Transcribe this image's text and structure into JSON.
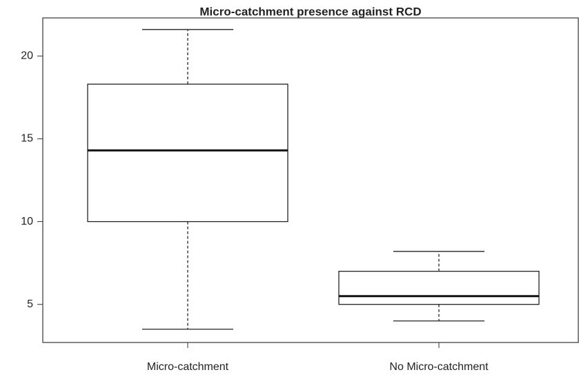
{
  "chart_data": {
    "type": "box",
    "title": "Micro-catchment presence against RCD",
    "categories": [
      "Micro-catchment",
      "No Micro-catchment"
    ],
    "boxes": [
      {
        "min": 3.5,
        "q1": 10,
        "median": 14.3,
        "q3": 18.3,
        "max": 21.6
      },
      {
        "min": 4.0,
        "q1": 5,
        "median": 5.5,
        "q3": 7.0,
        "max": 8.2
      }
    ],
    "ylim": [
      2.7,
      22.3
    ],
    "yticks": [
      5,
      10,
      15,
      20
    ]
  }
}
